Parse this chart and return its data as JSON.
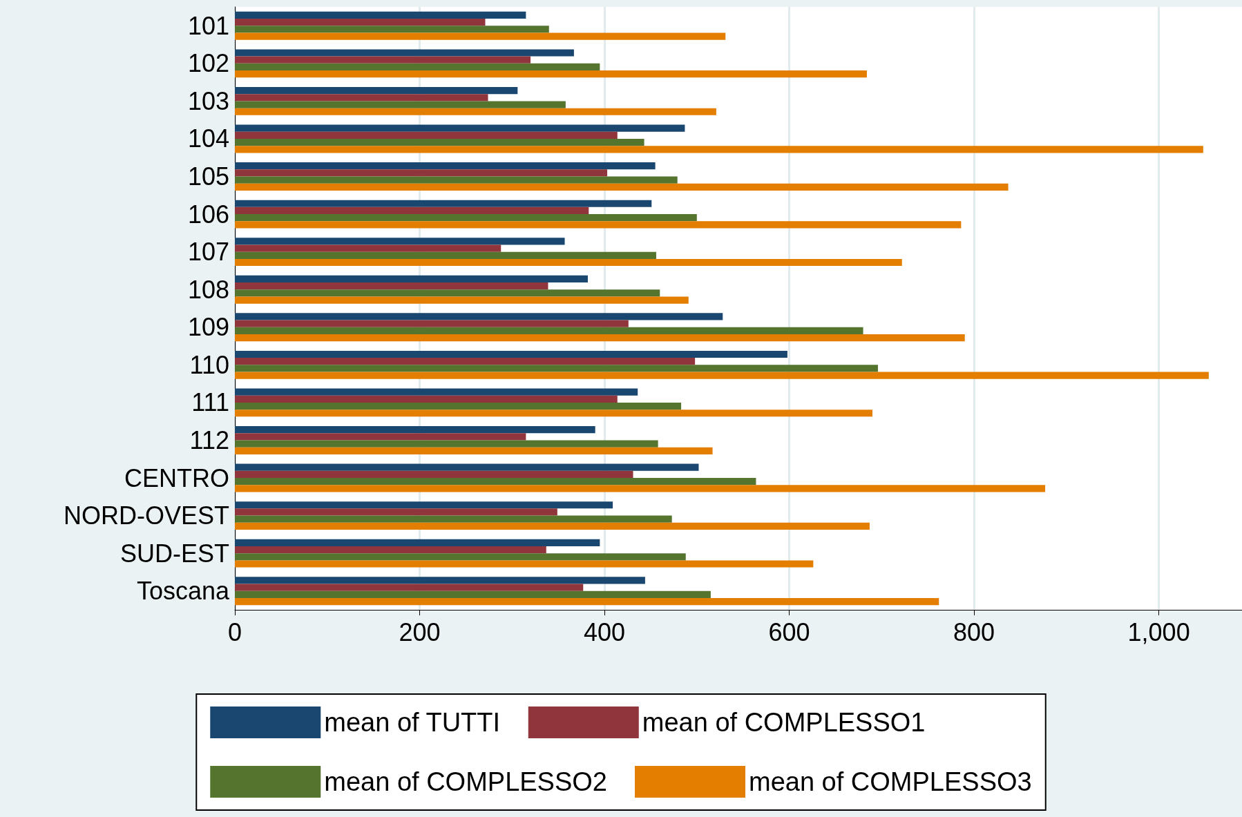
{
  "chart_data": {
    "type": "bar",
    "orientation": "horizontal",
    "categories": [
      "101",
      "102",
      "103",
      "104",
      "105",
      "106",
      "107",
      "108",
      "109",
      "110",
      "111",
      "112",
      "CENTRO",
      "NORD-OVEST",
      "SUD-EST",
      "Toscana"
    ],
    "series": [
      {
        "name": "mean of TUTTI",
        "color": "#1a476f",
        "values": [
          315,
          367,
          306,
          487,
          455,
          451,
          357,
          382,
          528,
          598,
          436,
          390,
          502,
          409,
          395,
          444
        ]
      },
      {
        "name": "mean of COMPLESSO1",
        "color": "#90353b",
        "values": [
          271,
          320,
          274,
          414,
          403,
          383,
          288,
          339,
          426,
          498,
          414,
          315,
          431,
          349,
          337,
          377
        ]
      },
      {
        "name": "mean of COMPLESSO2",
        "color": "#55752f",
        "values": [
          340,
          395,
          358,
          443,
          479,
          500,
          456,
          460,
          680,
          696,
          483,
          458,
          564,
          473,
          488,
          515
        ]
      },
      {
        "name": "mean of COMPLESSO3",
        "color": "#e37e00",
        "values": [
          531,
          684,
          521,
          1048,
          837,
          786,
          722,
          491,
          790,
          1054,
          690,
          517,
          877,
          687,
          626,
          762
        ]
      }
    ],
    "xlim": [
      0,
      1090
    ],
    "xticks": [
      0,
      200,
      400,
      600,
      800,
      {
        "value": 1000,
        "label": "1,000"
      }
    ],
    "grid": "x",
    "legend": "bottom"
  }
}
